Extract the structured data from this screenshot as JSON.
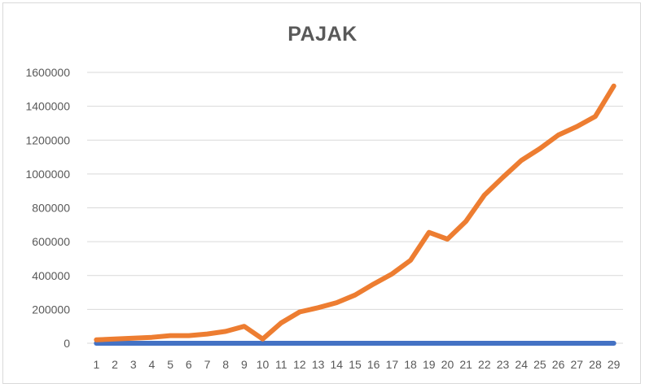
{
  "chart_data": {
    "type": "line",
    "title": "PAJAK",
    "xlabel": "",
    "ylabel": "",
    "categories": [
      "1",
      "2",
      "3",
      "4",
      "5",
      "6",
      "7",
      "8",
      "9",
      "10",
      "11",
      "12",
      "13",
      "14",
      "15",
      "16",
      "17",
      "18",
      "19",
      "20",
      "21",
      "22",
      "23",
      "24",
      "25",
      "26",
      "27",
      "28",
      "29"
    ],
    "ylim": [
      0,
      1600000
    ],
    "yticks": [
      "0",
      "200000",
      "400000",
      "600000",
      "800000",
      "1000000",
      "1200000",
      "1400000",
      "1600000"
    ],
    "grid": "horizontal",
    "legend": "none",
    "series": [
      {
        "color": "#4472c4",
        "values": [
          0,
          0,
          0,
          0,
          0,
          0,
          0,
          0,
          0,
          0,
          0,
          0,
          0,
          0,
          0,
          0,
          0,
          0,
          0,
          0,
          0,
          0,
          0,
          0,
          0,
          0,
          0,
          0,
          0
        ]
      },
      {
        "color": "#ed7d31",
        "values": [
          20000,
          25000,
          30000,
          35000,
          45000,
          45000,
          55000,
          70000,
          100000,
          25000,
          120000,
          185000,
          210000,
          240000,
          285000,
          350000,
          410000,
          490000,
          655000,
          615000,
          720000,
          875000,
          980000,
          1080000,
          1150000,
          1230000,
          1280000,
          1340000,
          1520000
        ]
      }
    ]
  }
}
